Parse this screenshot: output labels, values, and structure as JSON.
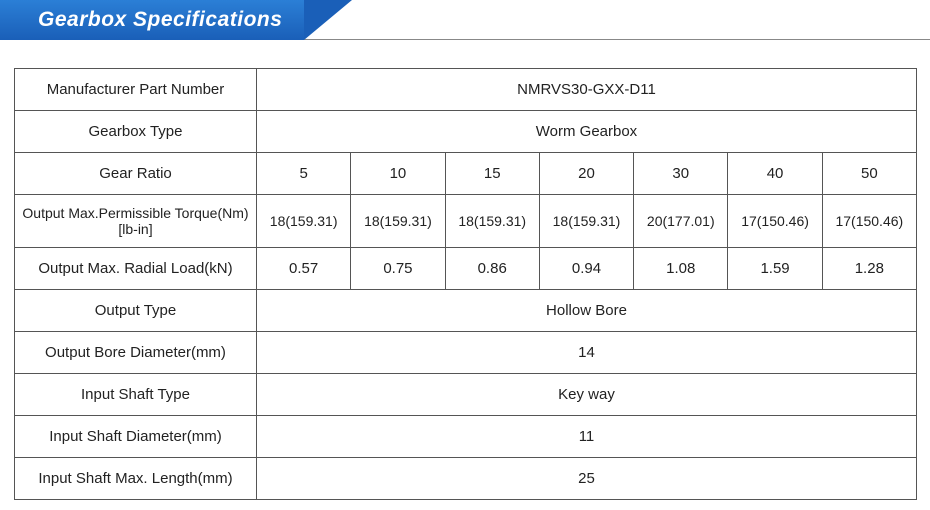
{
  "header": {
    "title": "Gearbox Specifications"
  },
  "table": {
    "label_col_width": 242,
    "rows": [
      {
        "label": "Manufacturer Part Number",
        "span": true,
        "value": "NMRVS30-GXX-D11"
      },
      {
        "label": "Gearbox Type",
        "span": true,
        "value": "Worm Gearbox"
      },
      {
        "label": "Gear Ratio",
        "values": [
          "5",
          "10",
          "15",
          "20",
          "30",
          "40",
          "50"
        ]
      },
      {
        "label": "Output Max.Permissible Torque(Nm)[lb-in]",
        "values": [
          "18(159.31)",
          "18(159.31)",
          "18(159.31)",
          "18(159.31)",
          "20(177.01)",
          "17(150.46)",
          "17(150.46)"
        ],
        "class": "torque-row"
      },
      {
        "label": "Output Max. Radial Load(kN)",
        "values": [
          "0.57",
          "0.75",
          "0.86",
          "0.94",
          "1.08",
          "1.59",
          "1.28"
        ]
      },
      {
        "label": "Output Type",
        "span": true,
        "value": "Hollow Bore"
      },
      {
        "label": "Output Bore Diameter(mm)",
        "span": true,
        "value": "14"
      },
      {
        "label": "Input Shaft Type",
        "span": true,
        "value": "Key way"
      },
      {
        "label": "Input Shaft Diameter(mm)",
        "span": true,
        "value": "11"
      },
      {
        "label": "Input Shaft Max. Length(mm)",
        "span": true,
        "value": "25"
      }
    ]
  },
  "colors": {
    "ribbon_gradient_top": "#2b7fd6",
    "ribbon_gradient_bottom": "#1a5fb8",
    "ribbon_dark": "#0a2540",
    "border": "#555",
    "text": "#222",
    "background": "#ffffff"
  }
}
